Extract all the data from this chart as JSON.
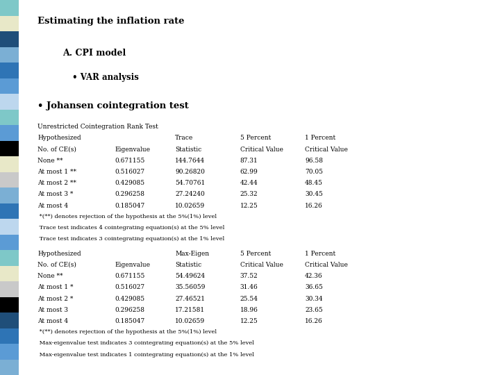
{
  "title": "Estimating the inflation rate",
  "subtitle1": "A. CPI model",
  "subtitle2": "• VAR analysis",
  "subtitle3": "• Johansen cointegration test",
  "section1_header": "Unrestricted Cointegration Rank Test",
  "section1_col_headers": [
    "Hypothesized",
    "",
    "Trace",
    "5 Percent",
    "1 Percent"
  ],
  "section1_col_headers2": [
    "No. of CE(s)",
    "Eigenvalue",
    "Statistic",
    "Critical Value",
    "Critical Value"
  ],
  "section1_rows": [
    [
      "None **",
      "0.671155",
      "144.7644",
      "87.31",
      "96.58"
    ],
    [
      "At most 1 **",
      "0.516027",
      "90.26820",
      "62.99",
      "70.05"
    ],
    [
      "At most 2 **",
      "0.429085",
      "54.70761",
      "42.44",
      "48.45"
    ],
    [
      "At most 3 *",
      "0.296258",
      "27.24240",
      "25.32",
      "30.45"
    ],
    [
      "At most 4",
      "0.185047",
      "10.02659",
      "12.25",
      "16.26"
    ]
  ],
  "section1_notes": [
    " *(**) denotes rejection of the hypothesis at the 5%(1%) level",
    " Trace test indicates 4 cointegrating equation(s) at the 5% level",
    " Trace test indicates 3 cointegrating equation(s) at the 1% level"
  ],
  "section2_col_headers": [
    "Hypothesized",
    "",
    "Max-Eigen",
    "5 Percent",
    "1 Percent"
  ],
  "section2_col_headers2": [
    "No. of CE(s)",
    "Eigenvalue",
    "Statistic",
    "Critical Value",
    "Critical Value"
  ],
  "section2_rows": [
    [
      "None **",
      "0.671155",
      "54.49624",
      "37.52",
      "42.36"
    ],
    [
      "At most 1 *",
      "0.516027",
      "35.56059",
      "31.46",
      "36.65"
    ],
    [
      "At most 2 *",
      "0.429085",
      "27.46521",
      "25.54",
      "30.34"
    ],
    [
      "At most 3",
      "0.296258",
      "17.21581",
      "18.96",
      "23.65"
    ],
    [
      "At most 4",
      "0.185047",
      "10.02659",
      "12.25",
      "16.26"
    ]
  ],
  "section2_notes": [
    " *(**) denotes rejection of the hypothesis at the 5%(1%) level",
    " Max-eigenvalue test indicates 3 cointegrating equation(s) at the 5% level",
    " Max-eigenvalue test indicates 1 cointegrating equation(s) at the 1% level"
  ],
  "bg_color": "#ffffff",
  "left_bar_colors": [
    "#7bafd4",
    "#5b9bd5",
    "#2e74b5",
    "#1f4e79",
    "#000000",
    "#c9c9c9",
    "#e8e8c8",
    "#7ec8c8",
    "#5b9bd5",
    "#bdd7ee",
    "#2e74b5",
    "#7bafd4",
    "#c9c9c9",
    "#e8e8c8",
    "#000000",
    "#5b9bd5",
    "#7ec8c8",
    "#bdd7ee",
    "#5b9bd5",
    "#2e74b5",
    "#7bafd4",
    "#1f4e79",
    "#e8e8c8",
    "#7ec8c8"
  ],
  "text_color": "#000000",
  "title_fontsize": 9.5,
  "subtitle1_fontsize": 9.0,
  "subtitle2_fontsize": 8.5,
  "subtitle3_fontsize": 9.5,
  "body_fontsize": 6.5
}
